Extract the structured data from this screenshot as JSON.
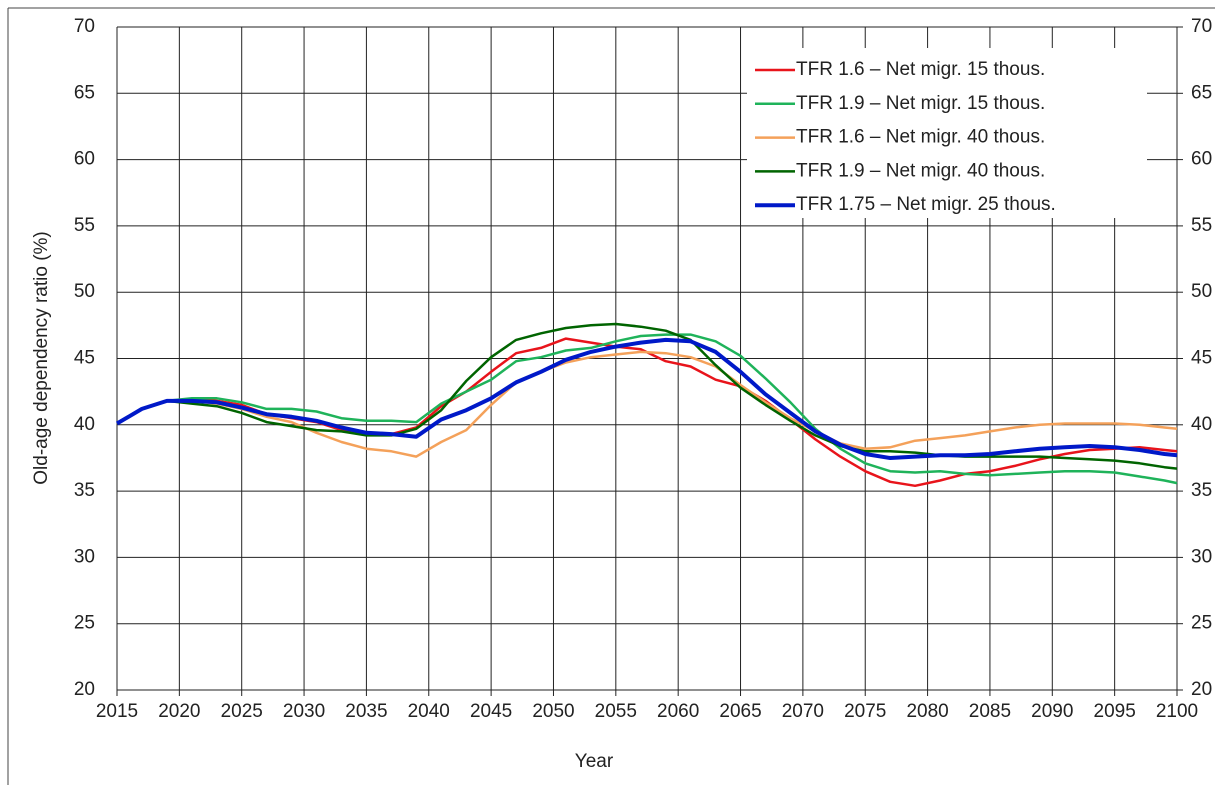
{
  "chart_data": {
    "type": "line",
    "xlabel": "Year",
    "ylabel": "Old-age dependency ratio (%)",
    "x": [
      2015,
      2017,
      2019,
      2021,
      2023,
      2025,
      2027,
      2029,
      2031,
      2033,
      2035,
      2037,
      2039,
      2041,
      2043,
      2045,
      2047,
      2049,
      2051,
      2053,
      2055,
      2057,
      2059,
      2061,
      2063,
      2065,
      2067,
      2069,
      2071,
      2073,
      2075,
      2077,
      2079,
      2081,
      2083,
      2085,
      2087,
      2089,
      2091,
      2093,
      2095,
      2097,
      2099,
      2100
    ],
    "series": [
      {
        "name": "TFR 1.6 – Net migr. 15 thous.",
        "color": "#e8141b",
        "linewidth": 2.5,
        "values": [
          40.1,
          41.2,
          41.8,
          41.9,
          41.8,
          41.5,
          40.8,
          40.5,
          40.2,
          39.6,
          39.4,
          39.3,
          39.8,
          41.4,
          42.5,
          44.0,
          45.4,
          45.8,
          46.5,
          46.2,
          45.9,
          45.7,
          44.8,
          44.4,
          43.4,
          42.9,
          41.8,
          40.4,
          38.9,
          37.6,
          36.5,
          35.7,
          35.4,
          35.8,
          36.3,
          36.5,
          36.9,
          37.4,
          37.8,
          38.1,
          38.2,
          38.3,
          38.1,
          38.0
        ]
      },
      {
        "name": "TFR 1.9 – Net migr. 15 thous.",
        "color": "#1fb35a",
        "linewidth": 2.5,
        "values": [
          40.1,
          41.2,
          41.8,
          42.0,
          42.0,
          41.7,
          41.2,
          41.2,
          41.0,
          40.5,
          40.3,
          40.3,
          40.2,
          41.6,
          42.5,
          43.4,
          44.8,
          45.1,
          45.6,
          45.8,
          46.3,
          46.7,
          46.8,
          46.8,
          46.3,
          45.2,
          43.5,
          41.7,
          39.7,
          38.2,
          37.1,
          36.5,
          36.4,
          36.5,
          36.3,
          36.2,
          36.3,
          36.4,
          36.5,
          36.5,
          36.4,
          36.1,
          35.8,
          35.6
        ]
      },
      {
        "name": "TFR 1.6 – Net migr. 40 thous.",
        "color": "#f4a15a",
        "linewidth": 2.5,
        "values": [
          40.1,
          41.2,
          41.8,
          41.8,
          41.6,
          41.2,
          40.6,
          40.2,
          39.4,
          38.7,
          38.2,
          38.0,
          37.6,
          38.7,
          39.6,
          41.5,
          43.2,
          44.0,
          44.7,
          45.1,
          45.3,
          45.5,
          45.4,
          45.1,
          44.4,
          43.0,
          41.7,
          40.5,
          39.5,
          38.6,
          38.2,
          38.3,
          38.8,
          39.0,
          39.2,
          39.5,
          39.8,
          40.0,
          40.1,
          40.1,
          40.1,
          40.0,
          39.8,
          39.7
        ]
      },
      {
        "name": "TFR 1.9 – Net migr. 40 thous.",
        "color": "#006400",
        "linewidth": 2.5,
        "values": [
          40.1,
          41.2,
          41.8,
          41.6,
          41.4,
          40.9,
          40.2,
          39.9,
          39.6,
          39.5,
          39.2,
          39.2,
          39.7,
          41.1,
          43.3,
          45.1,
          46.4,
          46.9,
          47.3,
          47.5,
          47.6,
          47.4,
          47.1,
          46.4,
          44.5,
          42.8,
          41.5,
          40.3,
          39.2,
          38.4,
          38.0,
          38.0,
          37.9,
          37.7,
          37.6,
          37.6,
          37.6,
          37.6,
          37.5,
          37.4,
          37.3,
          37.1,
          36.8,
          36.7
        ]
      },
      {
        "name": "TFR 1.75 – Net migr. 25 thous.",
        "color": "#0019c8",
        "linewidth": 4,
        "values": [
          40.1,
          41.2,
          41.8,
          41.8,
          41.7,
          41.3,
          40.8,
          40.6,
          40.3,
          39.8,
          39.4,
          39.3,
          39.1,
          40.4,
          41.1,
          42.0,
          43.2,
          44.0,
          44.9,
          45.5,
          45.9,
          46.2,
          46.4,
          46.3,
          45.5,
          44.0,
          42.3,
          40.9,
          39.5,
          38.5,
          37.8,
          37.5,
          37.6,
          37.7,
          37.7,
          37.8,
          38.0,
          38.2,
          38.3,
          38.4,
          38.3,
          38.1,
          37.8,
          37.7
        ]
      }
    ],
    "xlim": [
      2015,
      2100
    ],
    "xticks": [
      2015,
      2020,
      2025,
      2030,
      2035,
      2040,
      2045,
      2050,
      2055,
      2060,
      2065,
      2070,
      2075,
      2080,
      2085,
      2090,
      2095,
      2100
    ],
    "ylim": [
      20,
      70
    ],
    "yticks": [
      20,
      25,
      30,
      35,
      40,
      45,
      50,
      55,
      60,
      65,
      70
    ],
    "y2lim": [
      20,
      70
    ],
    "y2ticks": [
      20,
      25,
      30,
      35,
      40,
      45,
      50,
      55,
      60,
      65,
      70
    ],
    "grid": true,
    "legend": "upper right"
  }
}
